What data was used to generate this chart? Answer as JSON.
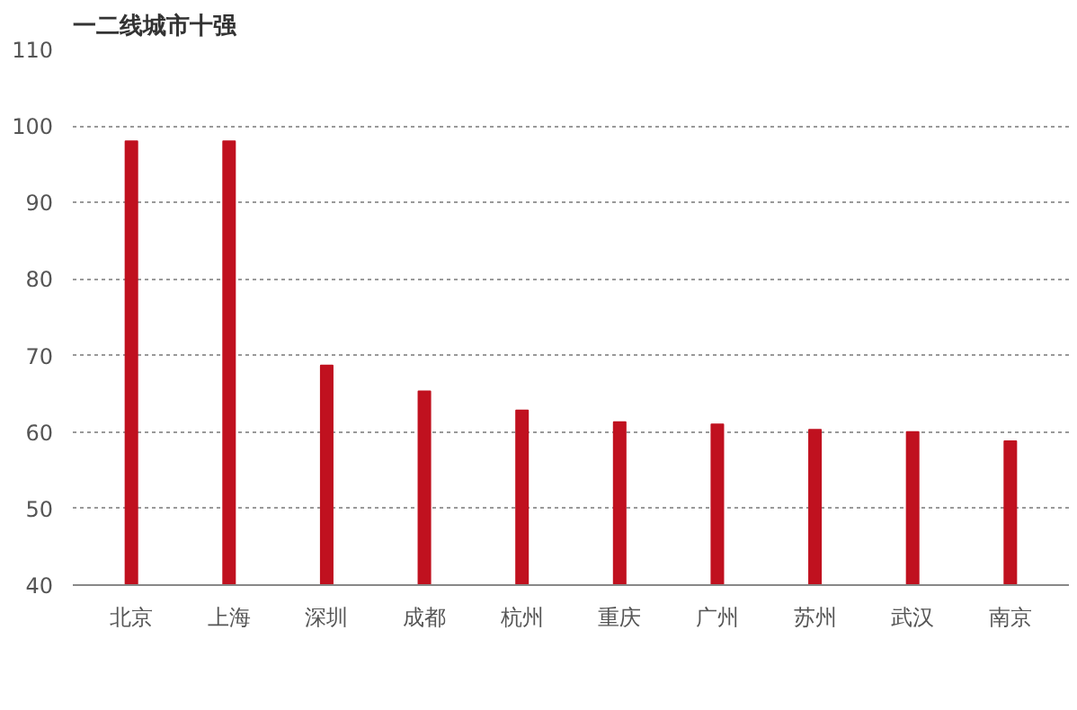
{
  "chart_data": {
    "type": "bar",
    "title": "一二线城市十强",
    "categories": [
      "北京",
      "上海",
      "深圳",
      "成都",
      "杭州",
      "重庆",
      "广州",
      "苏州",
      "武汉",
      "南京"
    ],
    "values": [
      98,
      98,
      68.7,
      65.3,
      62.8,
      61.3,
      61,
      60.3,
      60,
      58.8
    ],
    "color": "#c0111f",
    "ylim": [
      40,
      110
    ],
    "yticks": [
      40,
      50,
      60,
      70,
      80,
      90,
      100,
      110
    ],
    "grid": "y"
  }
}
